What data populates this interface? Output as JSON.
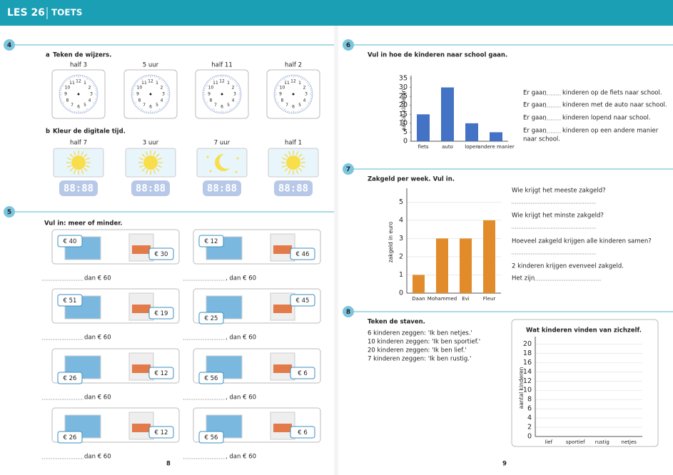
{
  "header": {
    "title": "LES 26",
    "subtitle": "TOETS"
  },
  "pages": [
    "8",
    "9"
  ],
  "ex4": {
    "number": "4",
    "a": {
      "letter": "a",
      "instruction": "Teken de wijzers.",
      "times": [
        "half 3",
        "5 uur",
        "half 11",
        "half 2"
      ]
    },
    "clock_numbers": [
      "12",
      "1",
      "2",
      "3",
      "4",
      "5",
      "6",
      "7",
      "8",
      "9",
      "10",
      "11"
    ],
    "b": {
      "letter": "b",
      "instruction": "Kleur de digitale tijd.",
      "times": [
        "half 7",
        "3 uur",
        "7 uur",
        "half 1"
      ],
      "display": "88:88"
    }
  },
  "ex5": {
    "number": "5",
    "instruction": "Vul in: meer of minder.",
    "answer": "dan € 60",
    "answer_comma": ", dan € 60",
    "items": [
      [
        "€ 40",
        "€ 30"
      ],
      [
        "€ 51",
        "€ 19"
      ],
      [
        "€ 26",
        "€ 12"
      ],
      [
        "€ 26",
        "€ 12"
      ],
      [
        "€ 12",
        "€ 46"
      ],
      [
        "€ 25",
        "€ 45"
      ],
      [
        "€ 56",
        "€ 6"
      ],
      [
        "€ 56",
        "€ 6"
      ]
    ]
  },
  "ex6": {
    "number": "6",
    "instruction": "Vul in hoe de kinderen naar school gaan.",
    "chart": {
      "type": "bar",
      "ylabel": "aantal kinderen",
      "categories": [
        "fiets",
        "auto",
        "lopen",
        "andere manier"
      ],
      "values": [
        15,
        30,
        10,
        5
      ],
      "color": "#4472c4",
      "ylim": [
        0,
        35
      ],
      "yticks": [
        0,
        5,
        10,
        15,
        20,
        25,
        30,
        35
      ],
      "grid": false
    },
    "prefix": "Er gaan",
    "sentences": [
      "kinderen op de fiets naar school.",
      "kinderen met de auto naar school.",
      "kinderen lopend naar school.",
      "kinderen op een andere manier"
    ],
    "last_line": "naar school."
  },
  "ex7": {
    "number": "7",
    "instruction": "Zakgeld per week. Vul in.",
    "chart": {
      "type": "bar",
      "ylabel": "zakgeld in euro",
      "categories": [
        "Daan",
        "Mohammed",
        "Evi",
        "Fleur"
      ],
      "values": [
        1,
        3,
        3,
        4
      ],
      "color": "#e28b2b",
      "ylim": [
        0,
        5.6
      ],
      "yticks": [
        0,
        1,
        2,
        3,
        4,
        5
      ],
      "grid": true
    },
    "questions": [
      "Wie krijgt het meeste zakgeld?",
      "Wie krijgt het minste zakgeld?",
      "Hoeveel zakgeld krijgen alle kinderen samen?",
      "2 kinderen krijgen evenveel zakgeld."
    ],
    "last": "Het zijn"
  },
  "ex8": {
    "number": "8",
    "instruction": "Teken de staven.",
    "statements": [
      "6 kinderen zeggen: 'Ik ben netjes.'",
      "10 kinderen zeggen: 'Ik ben sportief.'",
      "20 kinderen zeggen: 'Ik ben lief.'",
      "7 kinderen zeggen: 'Ik ben rustig.'"
    ],
    "chart": {
      "type": "bar",
      "title": "Wat kinderen vinden van zichzelf.",
      "ylabel": "aantal kinderen",
      "categories": [
        "lief",
        "sportief",
        "rustig",
        "netjes"
      ],
      "ylim": [
        0,
        21
      ],
      "yticks": [
        0,
        2,
        4,
        6,
        8,
        10,
        12,
        14,
        16,
        18,
        20
      ],
      "grid": true
    }
  }
}
